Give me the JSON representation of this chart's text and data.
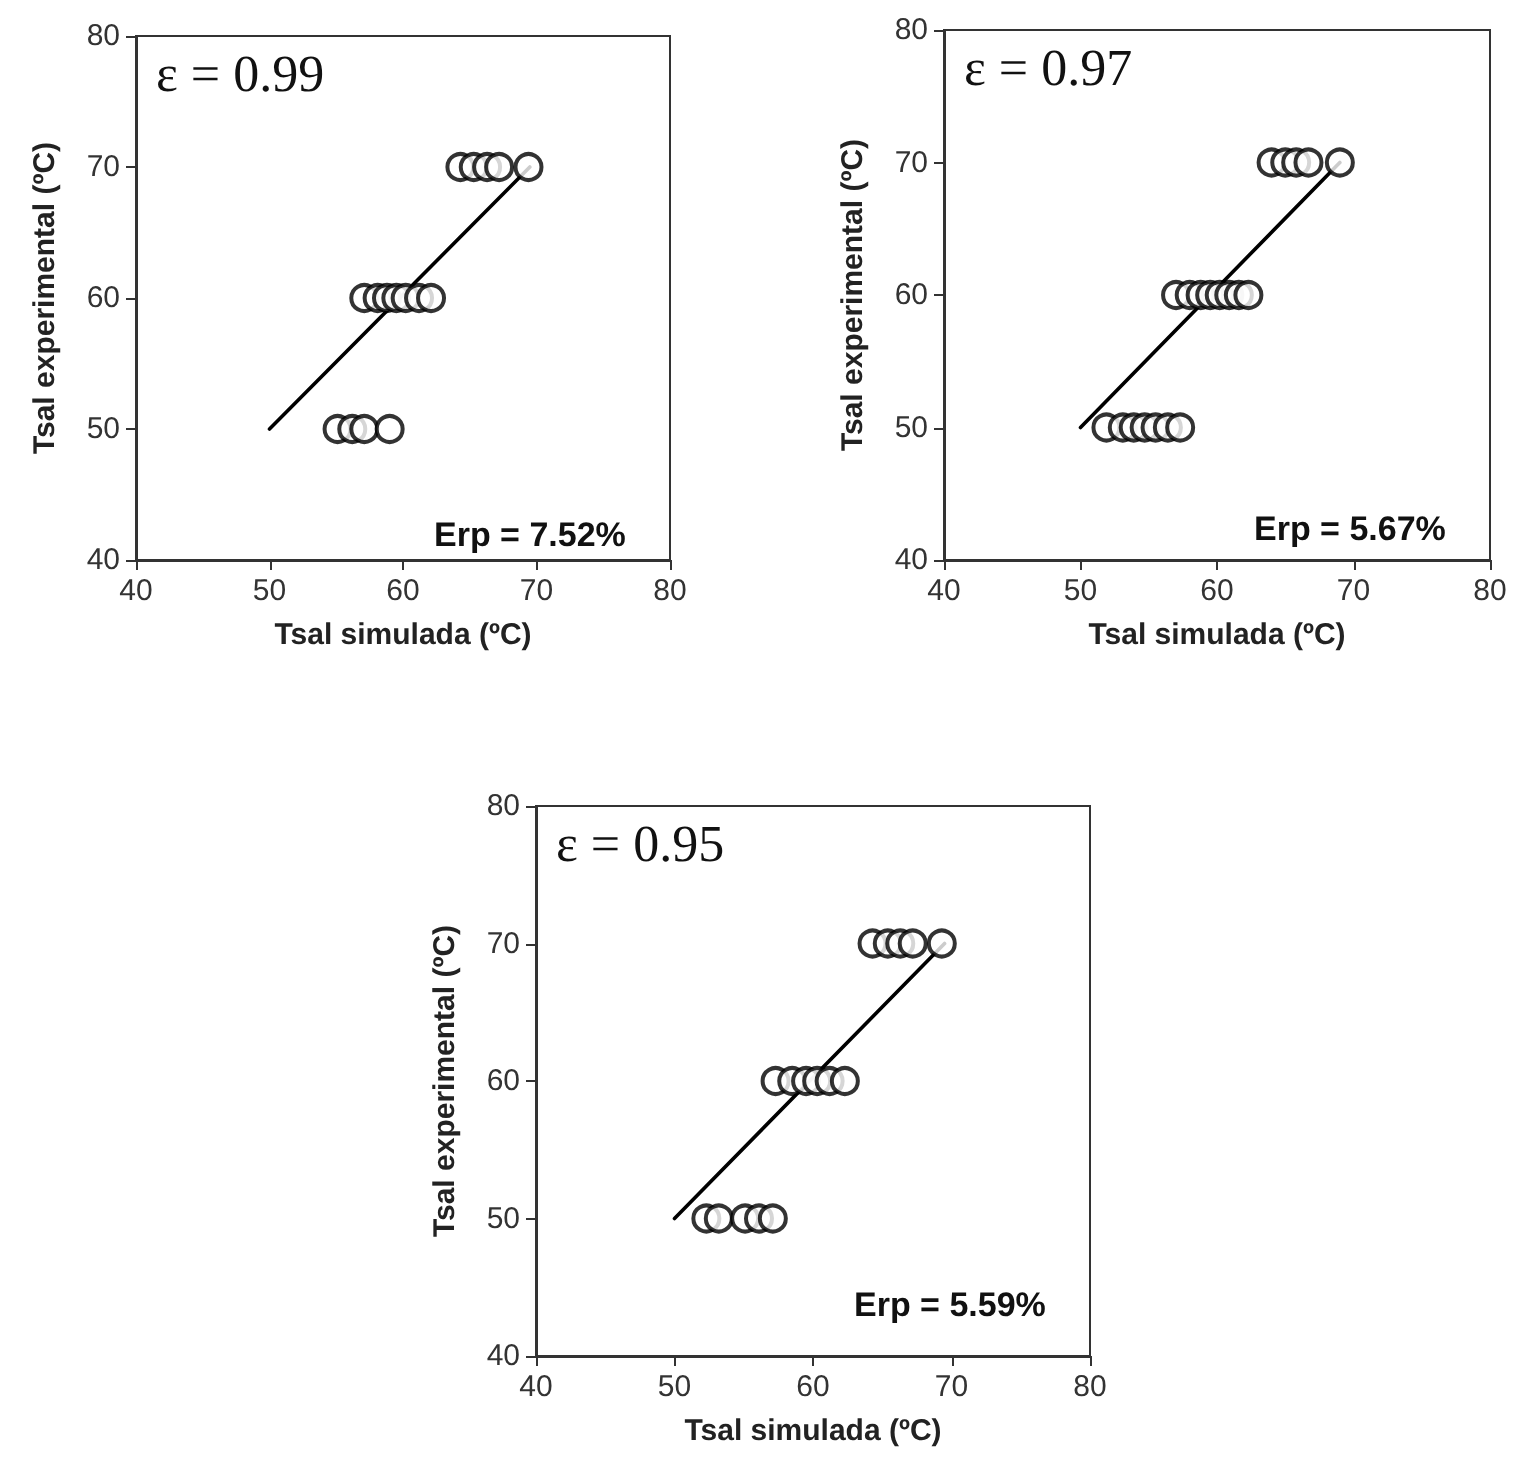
{
  "chart_data": [
    {
      "type": "scatter",
      "xlabel": "Tsal simulada (ºC)",
      "ylabel": "Tsal experimental (ºC)",
      "xlim": [
        40,
        80
      ],
      "ylim": [
        40,
        80
      ],
      "xticks": [
        40,
        50,
        60,
        70,
        80
      ],
      "yticks": [
        40,
        50,
        60,
        70,
        80
      ],
      "grid": false,
      "annotations": [
        "ε = 0.99",
        "Erp = 7.52%"
      ],
      "series": [
        {
          "marker": "circle",
          "color": "#000000",
          "x": [
            64.3,
            65.3,
            66.3,
            67.2,
            69.4,
            57.1,
            58.1,
            58.8,
            59.5,
            60.2,
            61.2,
            62.1,
            55.1,
            56.2,
            57.1,
            59.0
          ],
          "values": [
            70,
            70,
            70,
            70,
            70,
            60,
            60,
            60,
            60,
            60,
            60,
            60,
            50,
            50,
            50,
            50
          ]
        },
        {
          "type": "line",
          "color": "#000000",
          "x": [
            50,
            69.5
          ],
          "values": [
            50,
            70
          ]
        }
      ]
    },
    {
      "type": "scatter",
      "xlabel": "Tsal simulada (ºC)",
      "ylabel": "Tsal experimental (ºC)",
      "xlim": [
        40,
        80
      ],
      "ylim": [
        40,
        80
      ],
      "xticks": [
        40,
        50,
        60,
        70,
        80
      ],
      "yticks": [
        40,
        50,
        60,
        70,
        80
      ],
      "grid": false,
      "annotations": [
        "ε = 0.97",
        "Erp = 5.67%"
      ],
      "series": [
        {
          "marker": "circle",
          "color": "#000000",
          "x": [
            64.0,
            65.0,
            65.8,
            66.7,
            69.0,
            57.0,
            58.0,
            58.8,
            59.5,
            60.2,
            60.9,
            61.6,
            62.3,
            51.9,
            53.1,
            53.9,
            54.7,
            55.5,
            56.4,
            57.3
          ],
          "values": [
            70,
            70,
            70,
            70,
            70,
            60,
            60,
            60,
            60,
            60,
            60,
            60,
            60,
            50,
            50,
            50,
            50,
            50,
            50,
            50
          ]
        },
        {
          "type": "line",
          "color": "#000000",
          "x": [
            50,
            69
          ],
          "values": [
            50,
            70
          ]
        }
      ]
    },
    {
      "type": "scatter",
      "xlabel": "Tsal simulada (ºC)",
      "ylabel": "Tsal experimental (ºC)",
      "xlim": [
        40,
        80
      ],
      "ylim": [
        40,
        80
      ],
      "xticks": [
        40,
        50,
        60,
        70,
        80
      ],
      "yticks": [
        40,
        50,
        60,
        70,
        80
      ],
      "grid": false,
      "annotations": [
        "ε = 0.95",
        "Erp = 5.59%"
      ],
      "series": [
        {
          "marker": "circle",
          "color": "#000000",
          "x": [
            64.3,
            65.4,
            66.3,
            67.2,
            69.3,
            57.3,
            58.5,
            59.5,
            60.3,
            61.2,
            62.3,
            52.3,
            53.2,
            55.1,
            56.1,
            57.1
          ],
          "values": [
            70,
            70,
            70,
            70,
            70,
            60,
            60,
            60,
            60,
            60,
            60,
            50,
            50,
            50,
            50,
            50
          ]
        },
        {
          "type": "line",
          "color": "#000000",
          "x": [
            50,
            69.5
          ],
          "values": [
            50,
            70
          ]
        }
      ]
    }
  ]
}
